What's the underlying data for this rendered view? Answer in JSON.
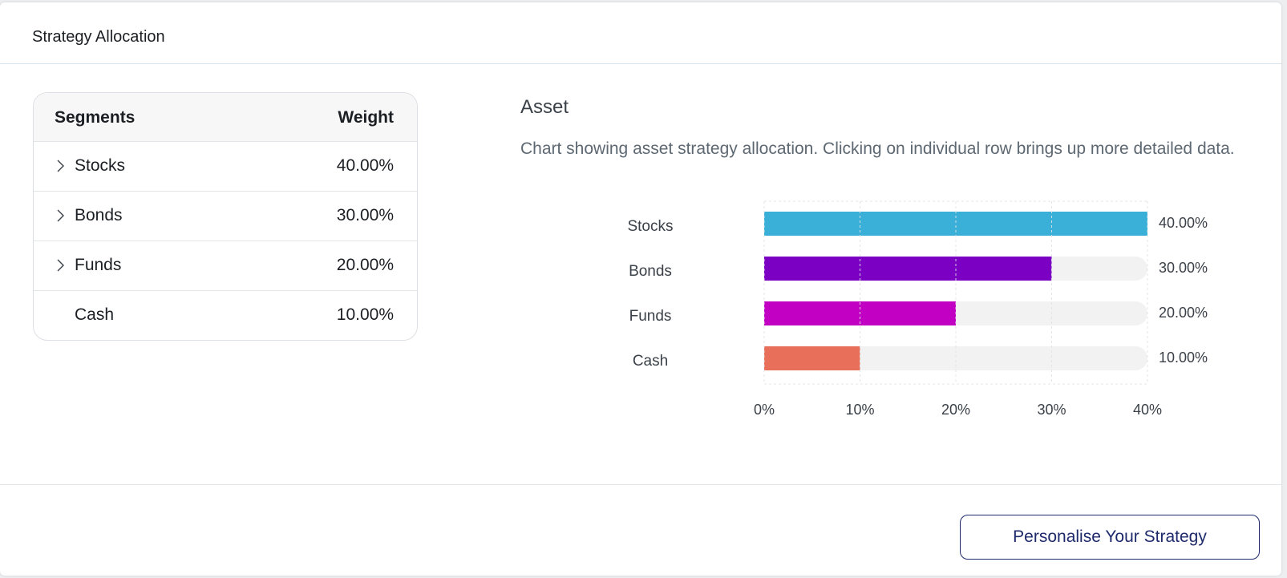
{
  "card": {
    "title": "Strategy Allocation"
  },
  "table": {
    "header": {
      "segments": "Segments",
      "weight": "Weight"
    },
    "rows": [
      {
        "name": "Stocks",
        "weight": "40.00%",
        "expandable": true
      },
      {
        "name": "Bonds",
        "weight": "30.00%",
        "expandable": true
      },
      {
        "name": "Funds",
        "weight": "20.00%",
        "expandable": true
      },
      {
        "name": "Cash",
        "weight": "10.00%",
        "expandable": false
      }
    ]
  },
  "chart_header": {
    "title": "Asset",
    "description": "Chart showing asset strategy allocation. Clicking on individual row brings up more detailed data."
  },
  "chart_data": {
    "type": "bar",
    "orientation": "horizontal",
    "categories": [
      "Stocks",
      "Bonds",
      "Funds",
      "Cash"
    ],
    "values": [
      40,
      30,
      20,
      10
    ],
    "data_labels": [
      "40.00%",
      "30.00%",
      "20.00%",
      "10.00%"
    ],
    "colors": [
      "#3ab0d9",
      "#7c00c4",
      "#c200c4",
      "#e8705a"
    ],
    "track_color": "#f2f2f2",
    "xlim": [
      0,
      40
    ],
    "xticks": [
      "0%",
      "10%",
      "20%",
      "30%",
      "40%"
    ],
    "xtick_values": [
      0,
      10,
      20,
      30,
      40
    ],
    "grid": true
  },
  "footer": {
    "cta_label": "Personalise Your Strategy"
  }
}
